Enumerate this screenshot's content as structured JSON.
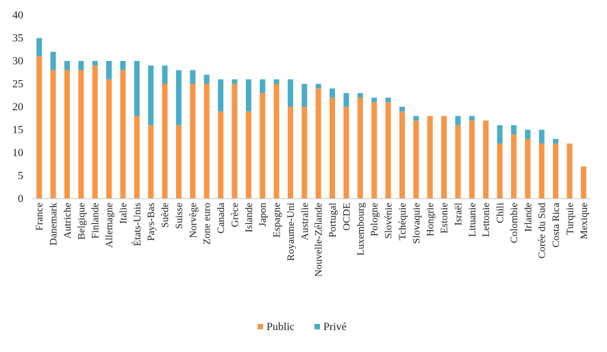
{
  "chart_data": {
    "type": "bar",
    "stacked": true,
    "title": "",
    "xlabel": "",
    "ylabel": "",
    "ylim": [
      0,
      40
    ],
    "yticks": [
      0,
      5,
      10,
      15,
      20,
      25,
      30,
      35,
      40
    ],
    "grid": false,
    "legend_position": "bottom-center",
    "categories": [
      "France",
      "Danemark",
      "Autriche",
      "Belgique",
      "Finlande",
      "Allemagne",
      "Italie",
      "États-Unis",
      "Pays-Bas",
      "Suède",
      "Suisse",
      "Norvège",
      "Zone euro",
      "Canada",
      "Grèce",
      "Islande",
      "Japon",
      "Espagne",
      "Royaume-Uni",
      "Australie",
      "Nouvelle-Zélande",
      "Portugal",
      "OCDE",
      "Luxembourg",
      "Pologne",
      "Slovénie",
      "Tchéquie",
      "Slovaquie",
      "Hongrie",
      "Estonie",
      "Israël",
      "Lituanie",
      "Lettonie",
      "Chili",
      "Colombie",
      "Irlande",
      "Corée du Sud",
      "Costa Rica",
      "Turquie",
      "Mexique"
    ],
    "series": [
      {
        "name": "Public",
        "color": "#f79646",
        "values": [
          31,
          28,
          28,
          28,
          29,
          26,
          28,
          18,
          16,
          25,
          16,
          25,
          25,
          19,
          25,
          19,
          23,
          25,
          20,
          20,
          24,
          22,
          20,
          22,
          21,
          21,
          19,
          17,
          18,
          18,
          16,
          17,
          17,
          12,
          14,
          13,
          12,
          12,
          12,
          7
        ]
      },
      {
        "name": "Privé",
        "color": "#4bacc6",
        "values": [
          4,
          4,
          2,
          2,
          1,
          4,
          2,
          12,
          13,
          4,
          12,
          3,
          2,
          7,
          1,
          7,
          3,
          1,
          6,
          5,
          1,
          2,
          3,
          1,
          1,
          1,
          1,
          1,
          0,
          0,
          2,
          1,
          0,
          4,
          2,
          2,
          3,
          1,
          0,
          0
        ]
      }
    ]
  }
}
